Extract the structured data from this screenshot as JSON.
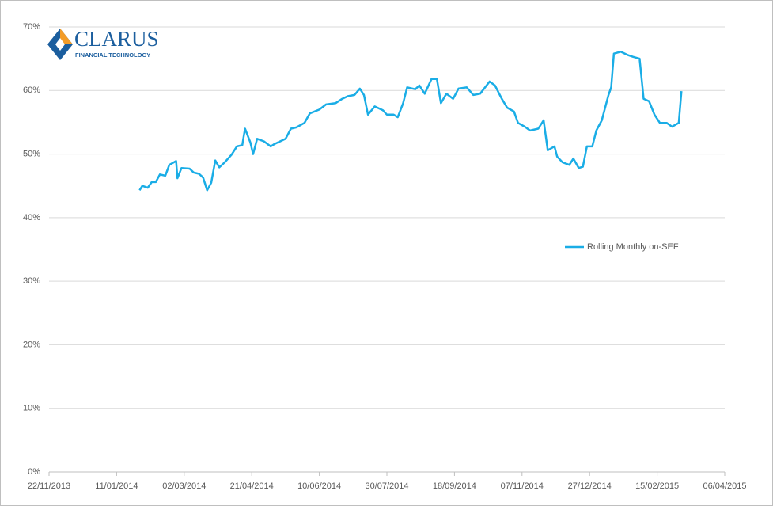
{
  "logo": {
    "name": "CLARUS",
    "tagline": "FINANCIAL TECHNOLOGY"
  },
  "chart_data": {
    "type": "line",
    "xlim": [
      "2013-11-22",
      "2015-04-06"
    ],
    "xticks": [
      {
        "value": "2013-11-22",
        "label": "22/11/2013"
      },
      {
        "value": "2014-01-11",
        "label": "11/01/2014"
      },
      {
        "value": "2014-03-02",
        "label": "02/03/2014"
      },
      {
        "value": "2014-04-21",
        "label": "21/04/2014"
      },
      {
        "value": "2014-06-10",
        "label": "10/06/2014"
      },
      {
        "value": "2014-07-30",
        "label": "30/07/2014"
      },
      {
        "value": "2014-09-18",
        "label": "18/09/2014"
      },
      {
        "value": "2014-11-07",
        "label": "07/11/2014"
      },
      {
        "value": "2014-12-27",
        "label": "27/12/2014"
      },
      {
        "value": "2015-02-15",
        "label": "15/02/2015"
      },
      {
        "value": "2015-04-06",
        "label": "06/04/2015"
      }
    ],
    "ylim": [
      0,
      70
    ],
    "yticks": [
      {
        "value": 0,
        "label": "0%"
      },
      {
        "value": 10,
        "label": "10%"
      },
      {
        "value": 20,
        "label": "20%"
      },
      {
        "value": 30,
        "label": "30%"
      },
      {
        "value": 40,
        "label": "40%"
      },
      {
        "value": 50,
        "label": "50%"
      },
      {
        "value": 60,
        "label": "60%"
      },
      {
        "value": 70,
        "label": "70%"
      }
    ],
    "grid": true,
    "legend": "right",
    "x": [
      "2014-01-28",
      "2014-01-30",
      "2014-02-03",
      "2014-02-06",
      "2014-02-09",
      "2014-02-12",
      "2014-02-16",
      "2014-02-19",
      "2014-02-24",
      "2014-02-25",
      "2014-02-28",
      "2014-03-06",
      "2014-03-09",
      "2014-03-13",
      "2014-03-16",
      "2014-03-19",
      "2014-03-22",
      "2014-03-25",
      "2014-03-28",
      "2014-04-01",
      "2014-04-06",
      "2014-04-10",
      "2014-04-14",
      "2014-04-16",
      "2014-04-20",
      "2014-04-22",
      "2014-04-25",
      "2014-04-30",
      "2014-05-05",
      "2014-05-08",
      "2014-05-12",
      "2014-05-16",
      "2014-05-20",
      "2014-05-24",
      "2014-05-30",
      "2014-06-03",
      "2014-06-10",
      "2014-06-15",
      "2014-06-22",
      "2014-06-27",
      "2014-07-01",
      "2014-07-06",
      "2014-07-10",
      "2014-07-13",
      "2014-07-16",
      "2014-07-21",
      "2014-07-27",
      "2014-07-30",
      "2014-08-04",
      "2014-08-07",
      "2014-08-11",
      "2014-08-14",
      "2014-08-20",
      "2014-08-23",
      "2014-08-27",
      "2014-09-01",
      "2014-09-05",
      "2014-09-08",
      "2014-09-12",
      "2014-09-17",
      "2014-09-21",
      "2014-09-27",
      "2014-10-02",
      "2014-10-07",
      "2014-10-14",
      "2014-10-18",
      "2014-10-23",
      "2014-10-27",
      "2014-11-01",
      "2014-11-04",
      "2014-11-09",
      "2014-11-13",
      "2014-11-19",
      "2014-11-23",
      "2014-11-26",
      "2014-12-01",
      "2014-12-03",
      "2014-12-07",
      "2014-12-12",
      "2014-12-15",
      "2014-12-19",
      "2014-12-22",
      "2014-12-25",
      "2014-12-29",
      "2015-01-01",
      "2015-01-05",
      "2015-01-10",
      "2015-01-12",
      "2015-01-14",
      "2015-01-19",
      "2015-01-24",
      "2015-01-28",
      "2015-02-02",
      "2015-02-05",
      "2015-02-09",
      "2015-02-13",
      "2015-02-17",
      "2015-02-22",
      "2015-02-26",
      "2015-03-03",
      "2015-03-05"
    ],
    "series": [
      {
        "name": "Rolling Monthly on-SEF",
        "color": "#1aade6",
        "values": [
          44.3,
          45.0,
          44.7,
          45.6,
          45.6,
          46.8,
          46.6,
          48.3,
          48.9,
          46.2,
          47.8,
          47.7,
          47.1,
          46.9,
          46.3,
          44.3,
          45.5,
          49.0,
          47.9,
          48.7,
          49.9,
          51.2,
          51.4,
          54.0,
          51.8,
          50.0,
          52.4,
          52.0,
          51.2,
          51.6,
          52.0,
          52.4,
          54.0,
          54.2,
          54.9,
          56.4,
          57.0,
          57.8,
          58.0,
          58.7,
          59.1,
          59.3,
          60.3,
          59.3,
          56.2,
          57.5,
          56.9,
          56.2,
          56.2,
          55.8,
          58.0,
          60.5,
          60.2,
          60.8,
          59.5,
          61.8,
          61.8,
          58.0,
          59.5,
          58.7,
          60.3,
          60.5,
          59.3,
          59.5,
          61.4,
          60.8,
          58.7,
          57.3,
          56.7,
          54.9,
          54.3,
          53.7,
          54.0,
          55.3,
          50.6,
          51.2,
          49.6,
          48.7,
          48.3,
          49.3,
          47.8,
          48.0,
          51.2,
          51.2,
          53.7,
          55.3,
          59.3,
          60.5,
          65.8,
          66.1,
          65.6,
          65.3,
          65.0,
          58.7,
          58.3,
          56.2,
          54.9,
          54.9,
          54.3,
          54.9,
          59.9
        ]
      }
    ]
  }
}
